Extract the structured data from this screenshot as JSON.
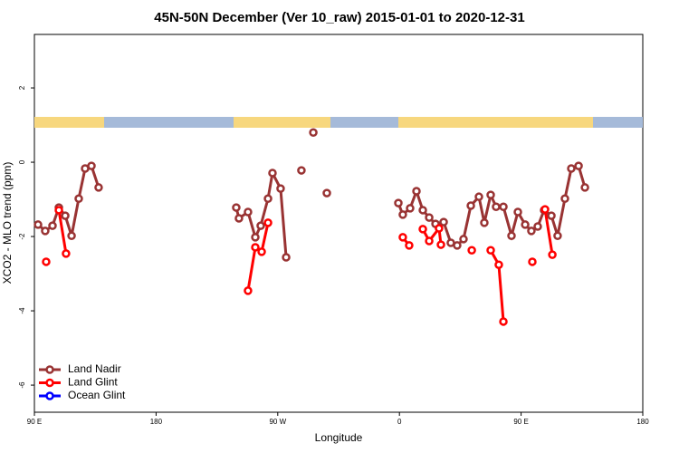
{
  "chart_data": {
    "type": "line",
    "title": "45N-50N December (Ver 10_raw)   2015-01-01 to 2020-12-31",
    "x_label": "Longitude",
    "y_label": "XCO2 - MLO trend (ppm)",
    "xlim": [
      90,
      540
    ],
    "xticks": [
      {
        "value": 90,
        "label": "90 E"
      },
      180,
      {
        "value": 270,
        "label": "90 W"
      },
      {
        "value": 360,
        "label": "0"
      },
      {
        "value": 450,
        "label": "90 E"
      },
      {
        "value": 540,
        "label": "180"
      }
    ],
    "ylim": [
      -6.73,
      3.44
    ],
    "yticks": [
      -6,
      -4,
      -2,
      0,
      2
    ],
    "legend": "bottom-left",
    "series": [
      {
        "name": "Land Nadir",
        "color": "#993333",
        "x": [
          92.7,
          98,
          103.4,
          108.1,
          112.8,
          117.5,
          122.8,
          127.5,
          132.2,
          137.5,
          null,
          239.3,
          241.3,
          248,
          253.4,
          257.4,
          262.8,
          266.1,
          272.1,
          276.2,
          null,
          287.5,
          null,
          296.3,
          null,
          306.3,
          null,
          359.2,
          362.5,
          367.9,
          372.6,
          377.3,
          382,
          386.7,
          392.7,
          398,
          402.7,
          407.4,
          412.8,
          418.8,
          422.8,
          427.5,
          431.5,
          436.9,
          442.9,
          447.6,
          453,
          457.6,
          462.3,
          467,
          472.4,
          477,
          482.4,
          487.1,
          492.5,
          497.2
        ],
        "values": [
          -1.68,
          -1.85,
          -1.71,
          -1.22,
          -1.44,
          -1.98,
          -0.98,
          -0.17,
          -0.1,
          -0.68,
          null,
          -1.22,
          -1.51,
          -1.34,
          -2.02,
          -1.71,
          -0.98,
          -0.29,
          -0.71,
          -2.56,
          null,
          -0.22,
          null,
          0.8,
          null,
          -0.83,
          null,
          -1.1,
          -1.41,
          -1.24,
          -0.78,
          -1.29,
          -1.49,
          -1.66,
          -1.61,
          -2.17,
          -2.24,
          -2.07,
          -1.17,
          -0.93,
          -1.63,
          -0.88,
          -1.2,
          -1.2,
          -1.98,
          -1.34,
          -1.68,
          -1.85,
          -1.73,
          -1.29,
          -1.44,
          -1.98,
          -0.98,
          -0.17,
          -0.1,
          -0.68
        ]
      },
      {
        "name": "Land Glint",
        "color": "#ff0000",
        "x": [
          98.7,
          null,
          108.1,
          113.4,
          null,
          248,
          253.4,
          258.1,
          262.8,
          null,
          362.5,
          367.2,
          null,
          377.3,
          382,
          389.3,
          390.7,
          null,
          413.5,
          null,
          427.5,
          433.5,
          436.9,
          null,
          458.3,
          null,
          467.7,
          473.1
        ],
        "values": [
          -2.68,
          null,
          -1.29,
          -2.46,
          null,
          -3.46,
          -2.29,
          -2.41,
          -1.63,
          null,
          -2.02,
          -2.24,
          null,
          -1.8,
          -2.12,
          -1.78,
          -2.22,
          null,
          -2.37,
          null,
          -2.37,
          -2.76,
          -4.29,
          null,
          -2.68,
          null,
          -1.27,
          -2.49
        ]
      },
      {
        "name": "Ocean Glint",
        "color": "#0000ff",
        "x": [],
        "values": []
      }
    ]
  }
}
